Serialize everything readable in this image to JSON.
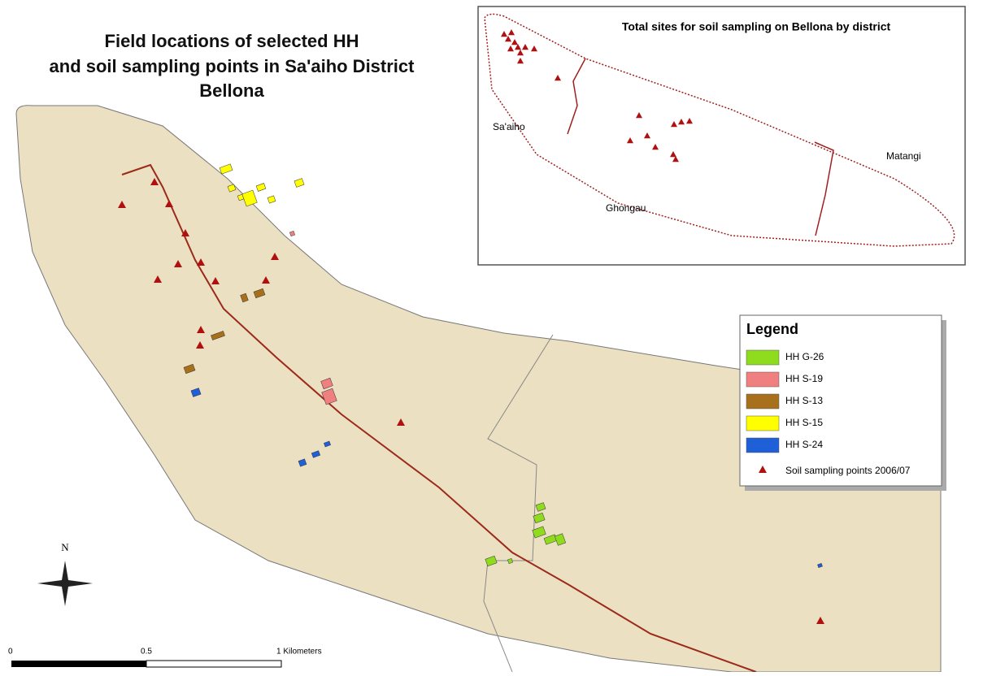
{
  "map": {
    "title": [
      "Field locations of selected HH",
      "and soil sampling points in Sa'aiho District",
      "Bellona"
    ],
    "inset": {
      "title": "Total sites for soil sampling on Bellona by district",
      "districts": [
        "Sa'aiho",
        "Ghongau",
        "Matangi"
      ]
    },
    "legend": {
      "title": "Legend",
      "items": [
        {
          "label": "HH G-26",
          "color": "#8fdc1e"
        },
        {
          "label": "HH S-19",
          "color": "#f08080"
        },
        {
          "label": "HH S-13",
          "color": "#a8701a"
        },
        {
          "label": "HH S-15",
          "color": "#ffff00"
        },
        {
          "label": "HH S-24",
          "color": "#1f5fd8"
        }
      ],
      "points_label": "Soil sampling points 2006/07",
      "points_color": "#b01010"
    },
    "scale": [
      "0",
      "0.5",
      "1 Kilometers"
    ],
    "north": "N"
  }
}
